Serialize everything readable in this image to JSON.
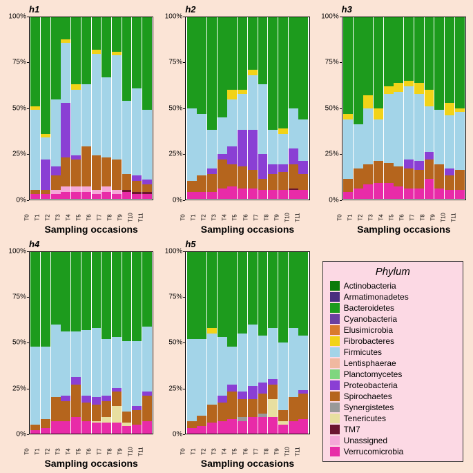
{
  "background_color": "#fbe4d6",
  "plot_background_color": "#ffffff",
  "legend_background_color": "#fcd9e4",
  "x_title": "Sampling occasions",
  "legend_title": "Phylum",
  "categories": [
    "T0",
    "T1",
    "T2",
    "T3",
    "T4",
    "T5",
    "T6",
    "T7",
    "T8",
    "T9",
    "T10",
    "T11"
  ],
  "y_ticks": [
    0,
    25,
    50,
    75,
    100
  ],
  "y_tick_labels": [
    "0%",
    "25%",
    "50%",
    "75%",
    "100%"
  ],
  "ylim": [
    0,
    100
  ],
  "phyla": [
    {
      "name": "Actinobacteria",
      "color": "#0a7a0a"
    },
    {
      "name": "Armatimonadetes",
      "color": "#4a2d7f"
    },
    {
      "name": "Bacteroidetes",
      "color": "#1d9b1d"
    },
    {
      "name": "Cyanobacteria",
      "color": "#6b3fa0"
    },
    {
      "name": "Elusimicrobia",
      "color": "#d97a2e"
    },
    {
      "name": "Fibrobacteres",
      "color": "#f2d318"
    },
    {
      "name": "Firmicutes",
      "color": "#a3d4e8"
    },
    {
      "name": "Lentisphaerae",
      "color": "#f0b8a0"
    },
    {
      "name": "Planctomycetes",
      "color": "#7fd67f"
    },
    {
      "name": "Proteobacteria",
      "color": "#8a3fd4"
    },
    {
      "name": "Spirochaetes",
      "color": "#b5651d"
    },
    {
      "name": "Synergistetes",
      "color": "#999999"
    },
    {
      "name": "Tenericutes",
      "color": "#e8dfa0"
    },
    {
      "name": "TM7",
      "color": "#6b1530"
    },
    {
      "name": "Unassigned",
      "color": "#f5a8d8"
    },
    {
      "name": "Verrucomicrobia",
      "color": "#e82ba8"
    }
  ],
  "panels": [
    {
      "title": "h1",
      "data": [
        {
          "Bacteroidetes": 49,
          "Fibrobacteres": 2,
          "Firmicutes": 44,
          "Spirochaetes": 2,
          "Verrucomicrobia": 3
        },
        {
          "Bacteroidetes": 64,
          "Fibrobacteres": 2,
          "Firmicutes": 12,
          "Proteobacteria": 17,
          "Spirochaetes": 2,
          "Verrucomicrobia": 3
        },
        {
          "Bacteroidetes": 45,
          "Firmicutes": 37,
          "Proteobacteria": 5,
          "Spirochaetes": 8,
          "Unassigned": 2,
          "Verrucomicrobia": 3
        },
        {
          "Bacteroidetes": 12,
          "Fibrobacteres": 2,
          "Firmicutes": 33,
          "Proteobacteria": 30,
          "Spirochaetes": 16,
          "Unassigned": 3,
          "Verrucomicrobia": 4
        },
        {
          "Bacteroidetes": 37,
          "Fibrobacteres": 3,
          "Firmicutes": 36,
          "Proteobacteria": 2,
          "Spirochaetes": 15,
          "Unassigned": 3,
          "Verrucomicrobia": 4
        },
        {
          "Bacteroidetes": 37,
          "Firmicutes": 34,
          "Spirochaetes": 22,
          "Unassigned": 3,
          "Verrucomicrobia": 4
        },
        {
          "Bacteroidetes": 18,
          "Fibrobacteres": 2,
          "Firmicutes": 56,
          "Spirochaetes": 19,
          "Unassigned": 2,
          "Verrucomicrobia": 3
        },
        {
          "Bacteroidetes": 33,
          "Firmicutes": 44,
          "Spirochaetes": 16,
          "Unassigned": 3,
          "Verrucomicrobia": 4
        },
        {
          "Bacteroidetes": 19,
          "Fibrobacteres": 2,
          "Firmicutes": 57,
          "Spirochaetes": 17,
          "Unassigned": 2,
          "Verrucomicrobia": 3
        },
        {
          "Bacteroidetes": 46,
          "Firmicutes": 40,
          "Spirochaetes": 9,
          "TM7": 1,
          "Verrucomicrobia": 4
        },
        {
          "Bacteroidetes": 39,
          "Firmicutes": 48,
          "Proteobacteria": 3,
          "Spirochaetes": 6,
          "TM7": 1,
          "Verrucomicrobia": 3
        },
        {
          "Bacteroidetes": 51,
          "Firmicutes": 38,
          "Proteobacteria": 3,
          "Spirochaetes": 4,
          "TM7": 1,
          "Verrucomicrobia": 3
        }
      ]
    },
    {
      "title": "h2",
      "data": [
        {
          "Bacteroidetes": 50,
          "Firmicutes": 40,
          "Spirochaetes": 6,
          "Verrucomicrobia": 4
        },
        {
          "Bacteroidetes": 53,
          "Firmicutes": 34,
          "Spirochaetes": 9,
          "Verrucomicrobia": 4
        },
        {
          "Bacteroidetes": 62,
          "Firmicutes": 21,
          "Proteobacteria": 3,
          "Spirochaetes": 10,
          "Verrucomicrobia": 4
        },
        {
          "Bacteroidetes": 55,
          "Firmicutes": 20,
          "Proteobacteria": 3,
          "Spirochaetes": 16,
          "Verrucomicrobia": 6
        },
        {
          "Bacteroidetes": 40,
          "Fibrobacteres": 5,
          "Firmicutes": 26,
          "Proteobacteria": 10,
          "Spirochaetes": 12,
          "Verrucomicrobia": 7
        },
        {
          "Bacteroidetes": 40,
          "Fibrobacteres": 2,
          "Firmicutes": 20,
          "Proteobacteria": 20,
          "Spirochaetes": 12,
          "Verrucomicrobia": 6
        },
        {
          "Bacteroidetes": 29,
          "Fibrobacteres": 3,
          "Firmicutes": 30,
          "Proteobacteria": 22,
          "Spirochaetes": 10,
          "Verrucomicrobia": 6
        },
        {
          "Bacteroidetes": 37,
          "Firmicutes": 38,
          "Proteobacteria": 14,
          "Spirochaetes": 6,
          "Verrucomicrobia": 5
        },
        {
          "Bacteroidetes": 62,
          "Firmicutes": 19,
          "Proteobacteria": 5,
          "Spirochaetes": 9,
          "Verrucomicrobia": 5
        },
        {
          "Bacteroidetes": 61,
          "Fibrobacteres": 3,
          "Firmicutes": 17,
          "Proteobacteria": 4,
          "Spirochaetes": 10,
          "Verrucomicrobia": 5
        },
        {
          "Bacteroidetes": 50,
          "Firmicutes": 22,
          "Proteobacteria": 9,
          "Spirochaetes": 13,
          "TM7": 1,
          "Verrucomicrobia": 5
        },
        {
          "Bacteroidetes": 56,
          "Firmicutes": 23,
          "Proteobacteria": 7,
          "Spirochaetes": 9,
          "Verrucomicrobia": 5
        }
      ]
    },
    {
      "title": "h3",
      "data": [
        {
          "Bacteroidetes": 53,
          "Fibrobacteres": 3,
          "Firmicutes": 33,
          "Spirochaetes": 7,
          "Verrucomicrobia": 4
        },
        {
          "Bacteroidetes": 59,
          "Firmicutes": 24,
          "Spirochaetes": 11,
          "Verrucomicrobia": 6
        },
        {
          "Bacteroidetes": 43,
          "Fibrobacteres": 7,
          "Firmicutes": 31,
          "Spirochaetes": 11,
          "Verrucomicrobia": 8
        },
        {
          "Bacteroidetes": 50,
          "Fibrobacteres": 6,
          "Firmicutes": 23,
          "Spirochaetes": 12,
          "Verrucomicrobia": 9
        },
        {
          "Bacteroidetes": 38,
          "Fibrobacteres": 4,
          "Firmicutes": 38,
          "Spirochaetes": 11,
          "Verrucomicrobia": 9
        },
        {
          "Bacteroidetes": 36,
          "Fibrobacteres": 5,
          "Firmicutes": 41,
          "Spirochaetes": 11,
          "Verrucomicrobia": 7
        },
        {
          "Bacteroidetes": 35,
          "Fibrobacteres": 3,
          "Firmicutes": 40,
          "Proteobacteria": 5,
          "Spirochaetes": 11,
          "Verrucomicrobia": 6
        },
        {
          "Bacteroidetes": 36,
          "Fibrobacteres": 6,
          "Firmicutes": 37,
          "Proteobacteria": 5,
          "Spirochaetes": 10,
          "Verrucomicrobia": 6
        },
        {
          "Bacteroidetes": 40,
          "Fibrobacteres": 9,
          "Firmicutes": 25,
          "Proteobacteria": 4,
          "Spirochaetes": 11,
          "Verrucomicrobia": 11
        },
        {
          "Bacteroidetes": 51,
          "Firmicutes": 30,
          "Spirochaetes": 13,
          "Verrucomicrobia": 6
        },
        {
          "Bacteroidetes": 47,
          "Fibrobacteres": 7,
          "Firmicutes": 29,
          "Proteobacteria": 4,
          "Spirochaetes": 8,
          "Verrucomicrobia": 5
        },
        {
          "Bacteroidetes": 50,
          "Fibrobacteres": 2,
          "Firmicutes": 32,
          "Spirochaetes": 11,
          "Verrucomicrobia": 5
        }
      ]
    },
    {
      "title": "h4",
      "data": [
        {
          "Bacteroidetes": 52,
          "Firmicutes": 43,
          "Spirochaetes": 3,
          "Verrucomicrobia": 2
        },
        {
          "Bacteroidetes": 52,
          "Firmicutes": 40,
          "Spirochaetes": 5,
          "Verrucomicrobia": 3
        },
        {
          "Bacteroidetes": 40,
          "Firmicutes": 40,
          "Spirochaetes": 13,
          "Verrucomicrobia": 7
        },
        {
          "Bacteroidetes": 44,
          "Firmicutes": 35,
          "Proteobacteria": 3,
          "Spirochaetes": 11,
          "Verrucomicrobia": 7
        },
        {
          "Bacteroidetes": 44,
          "Firmicutes": 25,
          "Proteobacteria": 4,
          "Spirochaetes": 18,
          "Verrucomicrobia": 9
        },
        {
          "Bacteroidetes": 43,
          "Firmicutes": 36,
          "Proteobacteria": 4,
          "Spirochaetes": 10,
          "Verrucomicrobia": 7
        },
        {
          "Bacteroidetes": 42,
          "Firmicutes": 38,
          "Proteobacteria": 4,
          "Spirochaetes": 9,
          "Tenericutes": 1,
          "Verrucomicrobia": 6
        },
        {
          "Bacteroidetes": 48,
          "Firmicutes": 31,
          "Proteobacteria": 3,
          "Spirochaetes": 9,
          "Tenericutes": 3,
          "Verrucomicrobia": 6
        },
        {
          "Bacteroidetes": 47,
          "Firmicutes": 28,
          "Proteobacteria": 2,
          "Spirochaetes": 8,
          "Tenericutes": 9,
          "Verrucomicrobia": 6
        },
        {
          "Bacteroidetes": 49,
          "Firmicutes": 39,
          "Spirochaetes": 6,
          "Tenericutes": 2,
          "Verrucomicrobia": 4
        },
        {
          "Bacteroidetes": 49,
          "Firmicutes": 36,
          "Proteobacteria": 2,
          "Spirochaetes": 8,
          "Verrucomicrobia": 5
        },
        {
          "Bacteroidetes": 41,
          "Firmicutes": 36,
          "Proteobacteria": 2,
          "Spirochaetes": 14,
          "Verrucomicrobia": 7
        }
      ]
    },
    {
      "title": "h5",
      "data": [
        {
          "Bacteroidetes": 48,
          "Firmicutes": 45,
          "Spirochaetes": 4,
          "Verrucomicrobia": 3
        },
        {
          "Bacteroidetes": 48,
          "Firmicutes": 42,
          "Spirochaetes": 6,
          "Verrucomicrobia": 4
        },
        {
          "Bacteroidetes": 42,
          "Fibrobacteres": 3,
          "Firmicutes": 39,
          "Spirochaetes": 10,
          "Verrucomicrobia": 6
        },
        {
          "Bacteroidetes": 47,
          "Firmicutes": 32,
          "Proteobacteria": 4,
          "Spirochaetes": 10,
          "Verrucomicrobia": 7
        },
        {
          "Bacteroidetes": 52,
          "Firmicutes": 21,
          "Proteobacteria": 4,
          "Spirochaetes": 15,
          "Verrucomicrobia": 8
        },
        {
          "Bacteroidetes": 45,
          "Firmicutes": 32,
          "Proteobacteria": 4,
          "Spirochaetes": 10,
          "Synergistetes": 2,
          "Verrucomicrobia": 7
        },
        {
          "Bacteroidetes": 40,
          "Firmicutes": 34,
          "Proteobacteria": 7,
          "Spirochaetes": 10,
          "Verrucomicrobia": 9
        },
        {
          "Bacteroidetes": 46,
          "Firmicutes": 26,
          "Proteobacteria": 6,
          "Spirochaetes": 11,
          "Synergistetes": 2,
          "Verrucomicrobia": 9
        },
        {
          "Bacteroidetes": 42,
          "Firmicutes": 28,
          "Proteobacteria": 3,
          "Spirochaetes": 8,
          "Tenericutes": 10,
          "Verrucomicrobia": 9
        },
        {
          "Bacteroidetes": 50,
          "Firmicutes": 37,
          "Spirochaetes": 6,
          "Tenericutes": 2,
          "Verrucomicrobia": 5
        },
        {
          "Bacteroidetes": 42,
          "Firmicutes": 38,
          "Spirochaetes": 13,
          "Verrucomicrobia": 7
        },
        {
          "Bacteroidetes": 46,
          "Firmicutes": 30,
          "Proteobacteria": 2,
          "Spirochaetes": 14,
          "Verrucomicrobia": 8
        }
      ]
    }
  ]
}
